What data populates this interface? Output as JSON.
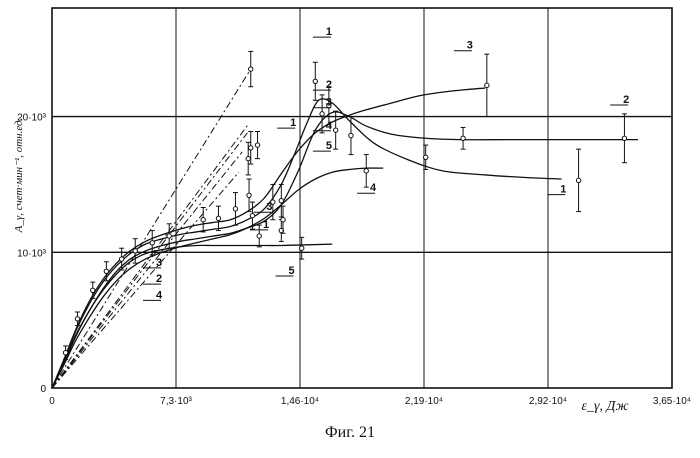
{
  "caption": "Фиг. 21",
  "chart_data": {
    "type": "line",
    "xlabel": "ε_γ, Дж",
    "ylabel": "A_γ, счет·мин⁻¹, отн.ед.",
    "xlim": [
      0,
      36500
    ],
    "ylim": [
      0,
      28000
    ],
    "grid": true,
    "x_ticks": [
      0,
      7300,
      14600,
      21900,
      29200,
      36500
    ],
    "x_tick_labels": [
      "0",
      "7,3·10³",
      "1,46·10⁴",
      "2,19·10⁴",
      "2,92·10⁴",
      "3,65·10⁴"
    ],
    "y_ticks": [
      0,
      10000,
      20000
    ],
    "y_tick_labels": [
      "0",
      "10·10³",
      "20·10³"
    ],
    "series": [
      {
        "label": "1",
        "style": "dashdot",
        "x": [
          0,
          11700
        ],
        "y": [
          0,
          23500
        ]
      },
      {
        "label": "2",
        "style": "dashdot",
        "x": [
          0,
          11600
        ],
        "y": [
          0,
          19500
        ]
      },
      {
        "label": "3",
        "style": "dashdot",
        "x": [
          0,
          11500
        ],
        "y": [
          0,
          18800
        ]
      },
      {
        "label": "4",
        "style": "dashdot",
        "x": [
          0,
          11200
        ],
        "y": [
          0,
          17400
        ]
      },
      {
        "label": "5",
        "style": "dashdot",
        "x": [
          0,
          11000
        ],
        "y": [
          0,
          15900
        ]
      },
      {
        "label": "1",
        "style": "solid",
        "x": [
          0,
          700,
          1400,
          2200,
          3000,
          3800,
          4600,
          5500,
          6500,
          7500,
          8500,
          9500,
          10500,
          11500,
          12500,
          13500,
          14300,
          15000,
          15700,
          16500,
          17500,
          19000,
          21000,
          23000,
          25500,
          28000,
          30000
        ],
        "y": [
          0,
          2000,
          4200,
          6200,
          7800,
          9000,
          9900,
          10600,
          11000,
          11300,
          11500,
          11700,
          11900,
          12400,
          13200,
          15000,
          17300,
          19500,
          21200,
          21000,
          19700,
          18000,
          16800,
          16000,
          15700,
          15500,
          15400
        ]
      },
      {
        "label": "2",
        "style": "solid",
        "x": [
          0,
          700,
          1400,
          2200,
          3000,
          3800,
          4600,
          5500,
          6500,
          7500,
          8500,
          9500,
          10500,
          11500,
          12500,
          13500,
          14500,
          15500,
          16500,
          17500,
          18500,
          20000,
          22000,
          24000,
          27000,
          30000,
          33000,
          34500
        ],
        "y": [
          0,
          1900,
          3900,
          5700,
          7300,
          8600,
          9500,
          10100,
          10500,
          10800,
          11000,
          11200,
          11400,
          11800,
          12300,
          13500,
          16000,
          19000,
          20300,
          20000,
          19300,
          18700,
          18400,
          18300,
          18300,
          18300,
          18300,
          18300
        ]
      },
      {
        "label": "3",
        "style": "solid",
        "x": [
          0,
          700,
          1400,
          2200,
          3000,
          3800,
          4600,
          5500,
          6500,
          7500,
          8500,
          9500,
          10500,
          11500,
          12500,
          13500,
          14500,
          15500,
          16500,
          17500,
          18500,
          20000,
          21500,
          23000,
          24500,
          25500
        ],
        "y": [
          0,
          2100,
          4300,
          6400,
          8000,
          9200,
          10100,
          10800,
          11300,
          11700,
          12000,
          12200,
          12400,
          13000,
          14000,
          15800,
          17500,
          18800,
          19600,
          20100,
          20500,
          21000,
          21500,
          21800,
          22000,
          22100
        ]
      },
      {
        "label": "4",
        "style": "solid",
        "x": [
          0,
          700,
          1400,
          2200,
          3000,
          3800,
          4600,
          5500,
          6500,
          7500,
          8500,
          9500,
          10500,
          11500,
          12500,
          13500,
          14500,
          15500,
          16500,
          17500,
          18500,
          19500
        ],
        "y": [
          0,
          1700,
          3500,
          5200,
          6700,
          7900,
          8800,
          9500,
          10000,
          10400,
          10700,
          11000,
          11300,
          11800,
          12500,
          13500,
          14600,
          15400,
          15900,
          16100,
          16200,
          16200
        ]
      },
      {
        "label": "5",
        "style": "solid",
        "x": [
          0,
          700,
          1400,
          2200,
          3000,
          3800,
          4600,
          5500,
          6500,
          7500,
          8500,
          9500,
          10500,
          12000,
          13500,
          15000,
          16500
        ],
        "y": [
          0,
          1800,
          3800,
          5700,
          7200,
          8400,
          9300,
          9900,
          10200,
          10400,
          10500,
          10500,
          10500,
          10500,
          10500,
          10550,
          10600
        ]
      }
    ],
    "error_points": [
      {
        "x": 11700,
        "y": 23500,
        "err": 1300
      },
      {
        "x": 11700,
        "y": 17700,
        "err": 1200
      },
      {
        "x": 11550,
        "y": 16900,
        "err": 1200
      },
      {
        "x": 12100,
        "y": 17900,
        "err": 1000
      },
      {
        "x": 11600,
        "y": 14200,
        "err": 1200
      },
      {
        "x": 13500,
        "y": 13800,
        "err": 1200
      },
      {
        "x": 13500,
        "y": 11600,
        "err": 800
      },
      {
        "x": 13600,
        "y": 12400,
        "err": 1000
      },
      {
        "x": 8900,
        "y": 12400,
        "err": 900
      },
      {
        "x": 9800,
        "y": 12500,
        "err": 900
      },
      {
        "x": 10800,
        "y": 13200,
        "err": 1200
      },
      {
        "x": 11800,
        "y": 12700,
        "err": 1000
      },
      {
        "x": 12200,
        "y": 11200,
        "err": 800
      },
      {
        "x": 13000,
        "y": 13700,
        "err": 1300
      },
      {
        "x": 14700,
        "y": 10300,
        "err": 800
      },
      {
        "x": 15500,
        "y": 22600,
        "err": 1400
      },
      {
        "x": 15900,
        "y": 20200,
        "err": 1400
      },
      {
        "x": 16300,
        "y": 20800,
        "err": 1400
      },
      {
        "x": 16700,
        "y": 19000,
        "err": 1400
      },
      {
        "x": 17600,
        "y": 18600,
        "err": 1400
      },
      {
        "x": 18500,
        "y": 16000,
        "err": 1200
      },
      {
        "x": 22000,
        "y": 17000,
        "err": 900
      },
      {
        "x": 24200,
        "y": 18400,
        "err": 800
      },
      {
        "x": 25600,
        "y": 22300,
        "err": 2300
      },
      {
        "x": 31000,
        "y": 15300,
        "err": 2300
      },
      {
        "x": 33700,
        "y": 18400,
        "err": 1800
      },
      {
        "x": 800,
        "y": 2600,
        "err": 500
      },
      {
        "x": 1500,
        "y": 5100,
        "err": 500
      },
      {
        "x": 2400,
        "y": 7200,
        "err": 600
      },
      {
        "x": 3200,
        "y": 8600,
        "err": 700
      },
      {
        "x": 4100,
        "y": 9500,
        "err": 800
      },
      {
        "x": 4900,
        "y": 10100,
        "err": 900
      },
      {
        "x": 5900,
        "y": 10700,
        "err": 900
      },
      {
        "x": 6900,
        "y": 11200,
        "err": 900
      }
    ],
    "curve_labels": [
      {
        "text": "1",
        "at": [
          16300,
          26000
        ]
      },
      {
        "text": "2",
        "at": [
          16300,
          22100
        ]
      },
      {
        "text": "3",
        "at": [
          16300,
          20800
        ]
      },
      {
        "text": "4",
        "at": [
          16300,
          19100
        ]
      },
      {
        "text": "5",
        "at": [
          16300,
          17600
        ]
      },
      {
        "text": "3",
        "at": [
          12800,
          13100
        ]
      },
      {
        "text": "1",
        "at": [
          12600,
          11800
        ]
      },
      {
        "text": "3",
        "at": [
          6300,
          9000
        ]
      },
      {
        "text": "2",
        "at": [
          6300,
          7800
        ]
      },
      {
        "text": "4",
        "at": [
          6300,
          6600
        ]
      },
      {
        "text": "5",
        "at": [
          14100,
          8400
        ]
      },
      {
        "text": "1",
        "at": [
          14200,
          19300
        ]
      },
      {
        "text": "4",
        "at": [
          18900,
          14500
        ]
      },
      {
        "text": "3",
        "at": [
          24600,
          25000
        ]
      },
      {
        "text": "2",
        "at": [
          33800,
          21000
        ]
      },
      {
        "text": "1",
        "at": [
          30100,
          14400
        ]
      }
    ]
  }
}
